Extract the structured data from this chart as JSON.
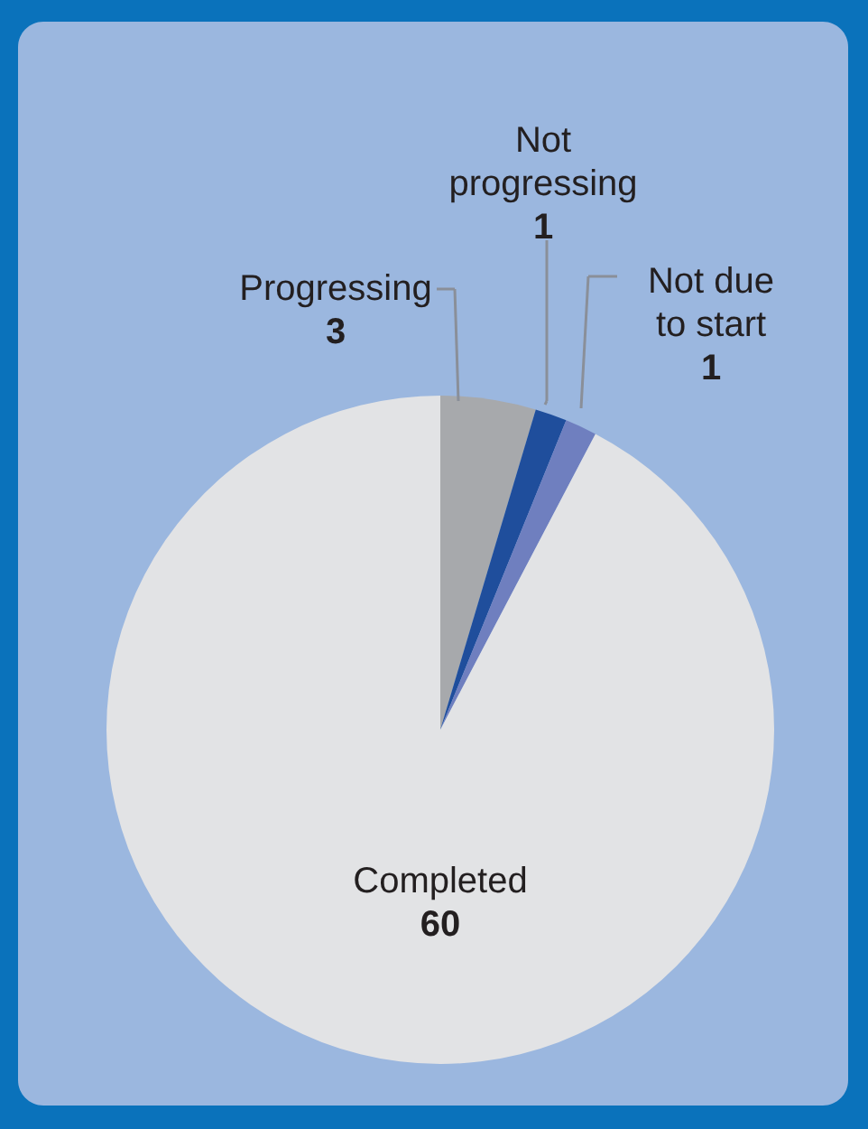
{
  "chart_data": {
    "type": "pie",
    "categories": [
      "Progressing",
      "Not progressing",
      "Not due to start",
      "Completed"
    ],
    "values": [
      3,
      1,
      1,
      60
    ],
    "colors": [
      "#a7a9ac",
      "#1f4e9c",
      "#6f7fbf",
      "#e2e3e5"
    ],
    "data_labels": true
  }
}
